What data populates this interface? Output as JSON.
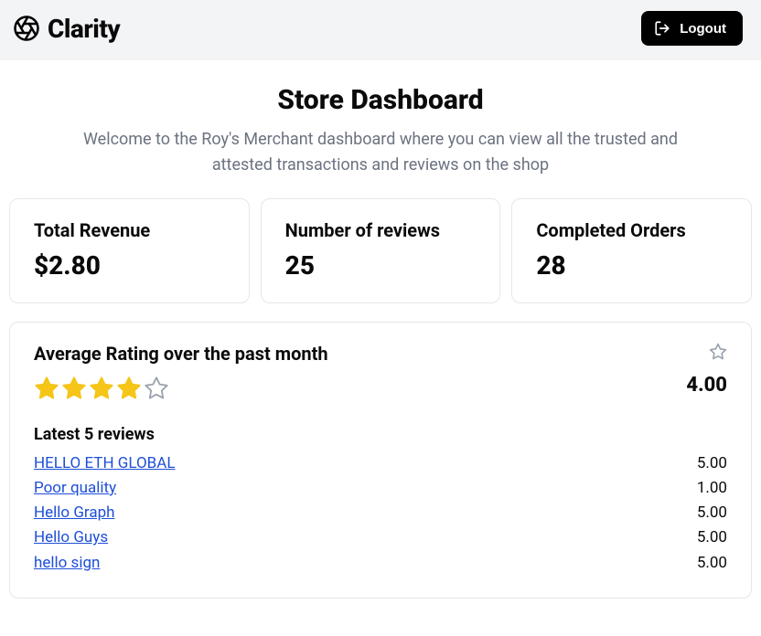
{
  "brand": {
    "name": "Clarity"
  },
  "header": {
    "logout_label": "Logout"
  },
  "page": {
    "title": "Store Dashboard",
    "subtitle": "Welcome to the Roy's Merchant dashboard where you can view all the trusted and attested transactions and reviews on the shop"
  },
  "stats": [
    {
      "label": "Total Revenue",
      "value": "$2.80"
    },
    {
      "label": "Number of reviews",
      "value": "25"
    },
    {
      "label": "Completed Orders",
      "value": "28"
    }
  ],
  "rating": {
    "title": "Average Rating over the past month",
    "value": "4.00",
    "stars_filled": 4,
    "stars_total": 5,
    "star_fill_color": "#f5c518",
    "star_empty_color": "#9ca3af"
  },
  "reviews": {
    "title": "Latest 5 reviews",
    "link_color": "#1d4ed8",
    "items": [
      {
        "label": "HELLO ETH GLOBAL",
        "score": "5.00"
      },
      {
        "label": "Poor quality",
        "score": "1.00"
      },
      {
        "label": "Hello Graph",
        "score": "5.00"
      },
      {
        "label": "Hello Guys",
        "score": "5.00"
      },
      {
        "label": "hello sign",
        "score": "5.00"
      }
    ]
  },
  "colors": {
    "topbar_bg": "#f3f4f6",
    "card_border": "#e5e7eb",
    "text_muted": "#6b7280"
  }
}
